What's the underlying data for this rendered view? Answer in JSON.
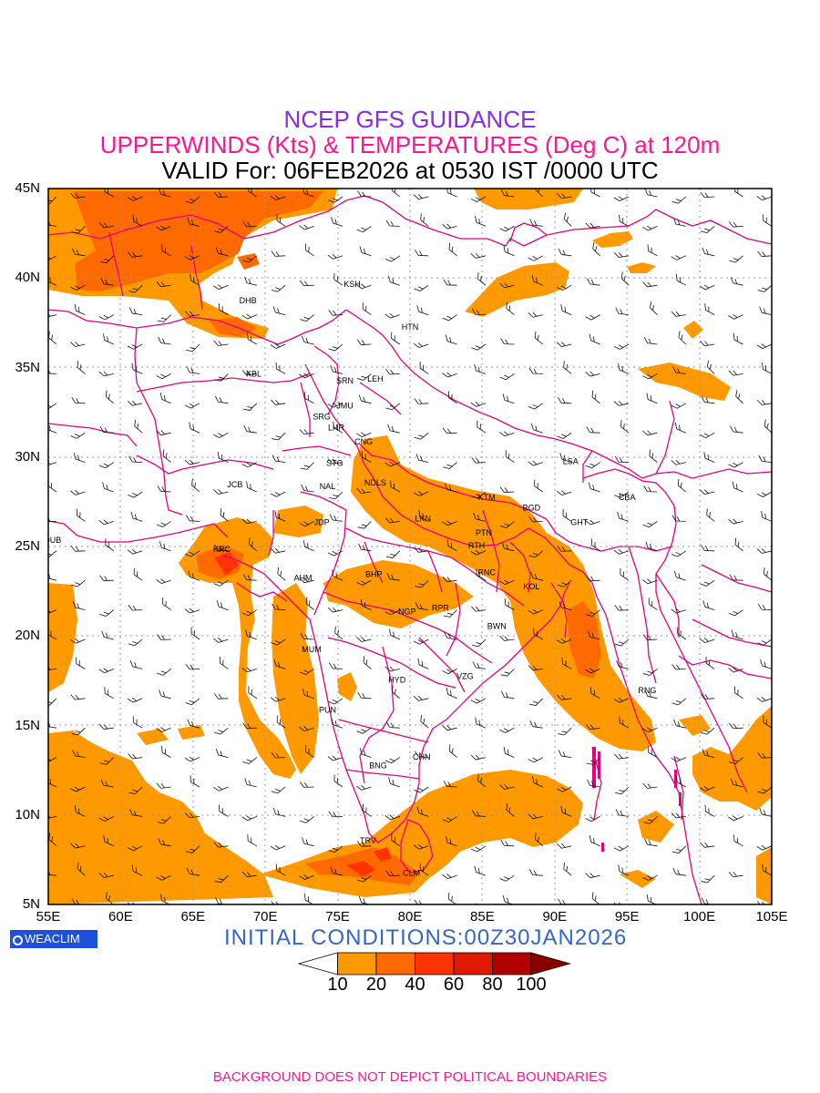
{
  "header": {
    "title": "NCEP GFS GUIDANCE",
    "subtitle": "UPPERWINDS (Kts) & TEMPERATURES (Deg C) at 120m",
    "valid": "VALID For: 06FEB2026 at 0530 IST /0000 UTC"
  },
  "map": {
    "lon_range": [
      55,
      105
    ],
    "lat_range": [
      5,
      45
    ],
    "lat_ticks": [
      "45N",
      "40N",
      "35N",
      "30N",
      "25N",
      "20N",
      "15N",
      "10N",
      "5N"
    ],
    "lon_ticks": [
      "55E",
      "60E",
      "65E",
      "70E",
      "75E",
      "80E",
      "85E",
      "90E",
      "95E",
      "100E",
      "105E"
    ],
    "cities": [
      {
        "name": "KSH",
        "lon": 76.0,
        "lat": 39.5
      },
      {
        "name": "DHB",
        "lon": 68.8,
        "lat": 38.6
      },
      {
        "name": "HTN",
        "lon": 80.0,
        "lat": 37.1
      },
      {
        "name": "KBL",
        "lon": 69.2,
        "lat": 34.5
      },
      {
        "name": "SRN",
        "lon": 75.5,
        "lat": 34.1
      },
      {
        "name": "LEH",
        "lon": 77.6,
        "lat": 34.2
      },
      {
        "name": "JMU",
        "lon": 75.5,
        "lat": 32.7
      },
      {
        "name": "SRG",
        "lon": 73.9,
        "lat": 32.1
      },
      {
        "name": "LHR",
        "lon": 74.9,
        "lat": 31.5
      },
      {
        "name": "CNG",
        "lon": 76.8,
        "lat": 30.7
      },
      {
        "name": "STG",
        "lon": 74.8,
        "lat": 29.5
      },
      {
        "name": "LSA",
        "lon": 91.1,
        "lat": 29.6
      },
      {
        "name": "JCB",
        "lon": 67.9,
        "lat": 28.3
      },
      {
        "name": "NAL",
        "lon": 74.3,
        "lat": 28.2
      },
      {
        "name": "NDLS",
        "lon": 77.6,
        "lat": 28.4
      },
      {
        "name": "CBA",
        "lon": 95.0,
        "lat": 27.6
      },
      {
        "name": "KTM",
        "lon": 85.3,
        "lat": 27.6
      },
      {
        "name": "JDP",
        "lon": 73.9,
        "lat": 26.2
      },
      {
        "name": "LKN",
        "lon": 80.9,
        "lat": 26.4
      },
      {
        "name": "BGD",
        "lon": 88.4,
        "lat": 27.0
      },
      {
        "name": "GHT",
        "lon": 91.7,
        "lat": 26.2
      },
      {
        "name": "PTN",
        "lon": 85.1,
        "lat": 25.6
      },
      {
        "name": "DUB",
        "lon": 55.3,
        "lat": 25.2
      },
      {
        "name": "RTH",
        "lon": 84.6,
        "lat": 24.9
      },
      {
        "name": "KRC",
        "lon": 67.0,
        "lat": 24.7
      },
      {
        "name": "BHP",
        "lon": 77.5,
        "lat": 23.3
      },
      {
        "name": "RNC",
        "lon": 85.3,
        "lat": 23.4
      },
      {
        "name": "AHM",
        "lon": 72.6,
        "lat": 23.1
      },
      {
        "name": "KOL",
        "lon": 88.4,
        "lat": 22.6
      },
      {
        "name": "NGP",
        "lon": 79.8,
        "lat": 21.2
      },
      {
        "name": "RPR",
        "lon": 82.1,
        "lat": 21.4
      },
      {
        "name": "BWN",
        "lon": 86.0,
        "lat": 20.4
      },
      {
        "name": "MUM",
        "lon": 73.2,
        "lat": 19.1
      },
      {
        "name": "HYD",
        "lon": 79.1,
        "lat": 17.4
      },
      {
        "name": "VZG",
        "lon": 83.8,
        "lat": 17.6
      },
      {
        "name": "RNG",
        "lon": 96.4,
        "lat": 16.8
      },
      {
        "name": "PUN",
        "lon": 74.3,
        "lat": 15.7
      },
      {
        "name": "CHN",
        "lon": 80.8,
        "lat": 13.1
      },
      {
        "name": "BNG",
        "lon": 77.8,
        "lat": 12.6
      },
      {
        "name": "TRV",
        "lon": 77.1,
        "lat": 8.4
      },
      {
        "name": "CLM",
        "lon": 80.1,
        "lat": 6.6
      }
    ]
  },
  "colorbar": {
    "labels": [
      "10",
      "20",
      "40",
      "60",
      "80",
      "100"
    ],
    "colors": [
      "#ffffff",
      "#ff9900",
      "#ff6a00",
      "#ff3300",
      "#e01a00",
      "#b00000",
      "#880000"
    ]
  },
  "logo": {
    "text": "WEACLIM",
    "icon": "circle-logo-icon"
  },
  "initial_conditions": "INITIAL CONDITIONS:00Z30JAN2026",
  "footer": "BACKGROUND DOES NOT DEPICT POLITICAL BOUNDARIES",
  "colors": {
    "title": "#8a2be2",
    "subtitle": "#ff1493",
    "wind_fill_10_20": "#ff9900",
    "wind_fill_20_40": "#ff6a00",
    "wind_fill_40_60": "#ff3300",
    "boundary": "#e6007e",
    "temperature_text": "#2a3cd6",
    "grid": "#999999",
    "init_text": "#3366cc"
  }
}
